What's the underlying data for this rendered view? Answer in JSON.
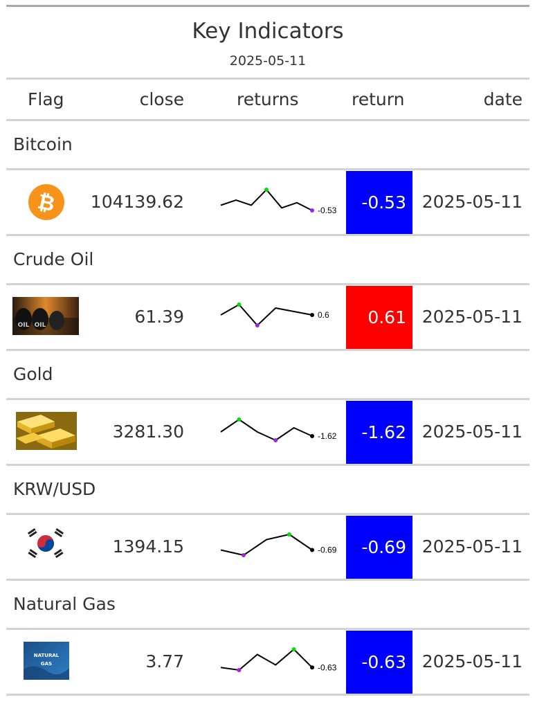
{
  "title": "Key Indicators",
  "subtitle": "2025-05-11",
  "columns": {
    "flag": "Flag",
    "close": "close",
    "returns": "returns",
    "return": "return",
    "date": "date"
  },
  "colors": {
    "negative": "#0000ff",
    "positive": "#ff0000",
    "spark_line": "#000000",
    "spark_max": "#00dd00",
    "spark_min": "#a020f0"
  },
  "rows": [
    {
      "group": "Bitcoin",
      "icon": "bitcoin-icon",
      "close": "104139.62",
      "spark": [
        2,
        4,
        2,
        8,
        1,
        3,
        0
      ],
      "spark_label": "-0.53",
      "return": "-0.53",
      "direction": "negative",
      "date": "2025-05-11"
    },
    {
      "group": "Crude Oil",
      "icon": "crude-oil-barrels-image",
      "close": "61.39",
      "spark": [
        4,
        7,
        1,
        6,
        5,
        4
      ],
      "spark_label": "0.6",
      "return": "0.61",
      "direction": "positive",
      "date": "2025-05-11"
    },
    {
      "group": "Gold",
      "icon": "gold-bars-image",
      "close": "3281.30",
      "spark": [
        5,
        8,
        5,
        3,
        6,
        4
      ],
      "spark_label": "-1.62",
      "return": "-1.62",
      "direction": "negative",
      "date": "2025-05-11"
    },
    {
      "group": "KRW/USD",
      "icon": "korea-flag-icon",
      "close": "1394.15",
      "spark": [
        5,
        4,
        7,
        8,
        5
      ],
      "spark_label": "-0.69",
      "return": "-0.69",
      "direction": "negative",
      "date": "2025-05-11"
    },
    {
      "group": "Natural Gas",
      "icon": "natural-gas-image",
      "close": "3.77",
      "icon_text": [
        "NATURAL",
        "GAS"
      ],
      "spark": [
        4,
        3,
        9,
        5,
        11,
        4
      ],
      "spark_label": "-0.63",
      "return": "-0.63",
      "direction": "negative",
      "date": "2025-05-11"
    }
  ]
}
